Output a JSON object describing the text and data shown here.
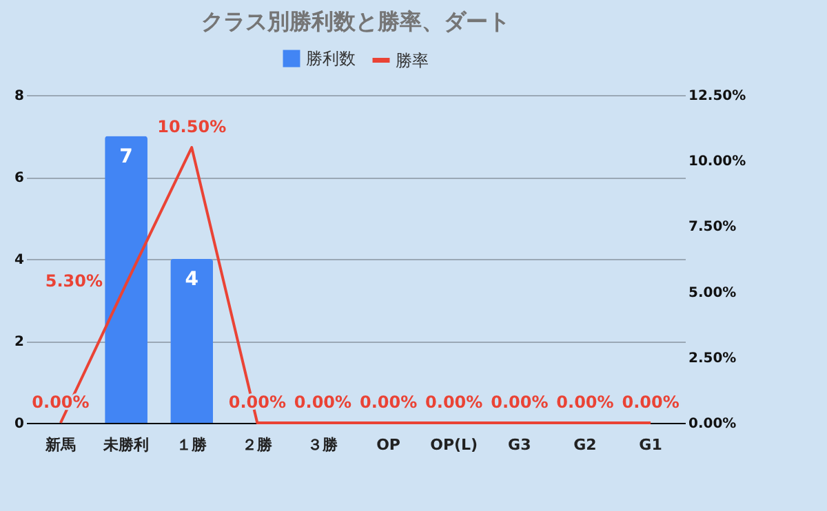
{
  "chart_data": {
    "type": "bar",
    "title": "クラス別勝利数と勝率、ダート",
    "categories": [
      "新馬",
      "未勝利",
      "１勝",
      "２勝",
      "３勝",
      "OP",
      "OP(L)",
      "G3",
      "G2",
      "G1"
    ],
    "series": [
      {
        "name": "勝利数",
        "type": "bar",
        "color": "#4285f4",
        "values": [
          0,
          7,
          4,
          0,
          0,
          0,
          0,
          0,
          0,
          0
        ],
        "value_labels": [
          null,
          "7",
          "4",
          null,
          null,
          null,
          null,
          null,
          null,
          null
        ]
      },
      {
        "name": "勝率",
        "type": "line",
        "axis": "y2",
        "color": "#ea4335",
        "values": [
          0,
          5.3,
          10.5,
          0,
          0,
          0,
          0,
          0,
          0,
          0
        ],
        "value_labels": [
          "0.00%",
          "5.30%",
          "10.50%",
          "0.00%",
          "0.00%",
          "0.00%",
          "0.00%",
          "0.00%",
          "0.00%",
          "0.00%"
        ]
      }
    ],
    "ylim": [
      0,
      8
    ],
    "yticks": [
      0,
      2,
      4,
      6,
      8
    ],
    "y2lim": [
      0,
      12.5
    ],
    "y2ticks": [
      {
        "value": 0,
        "label": "0.00%"
      },
      {
        "value": 2.5,
        "label": "2.50%"
      },
      {
        "value": 5,
        "label": "5.00%"
      },
      {
        "value": 7.5,
        "label": "7.50%"
      },
      {
        "value": 10,
        "label": "10.00%"
      },
      {
        "value": 12.5,
        "label": "12.50%"
      }
    ],
    "grid": "y",
    "legend": "top"
  }
}
